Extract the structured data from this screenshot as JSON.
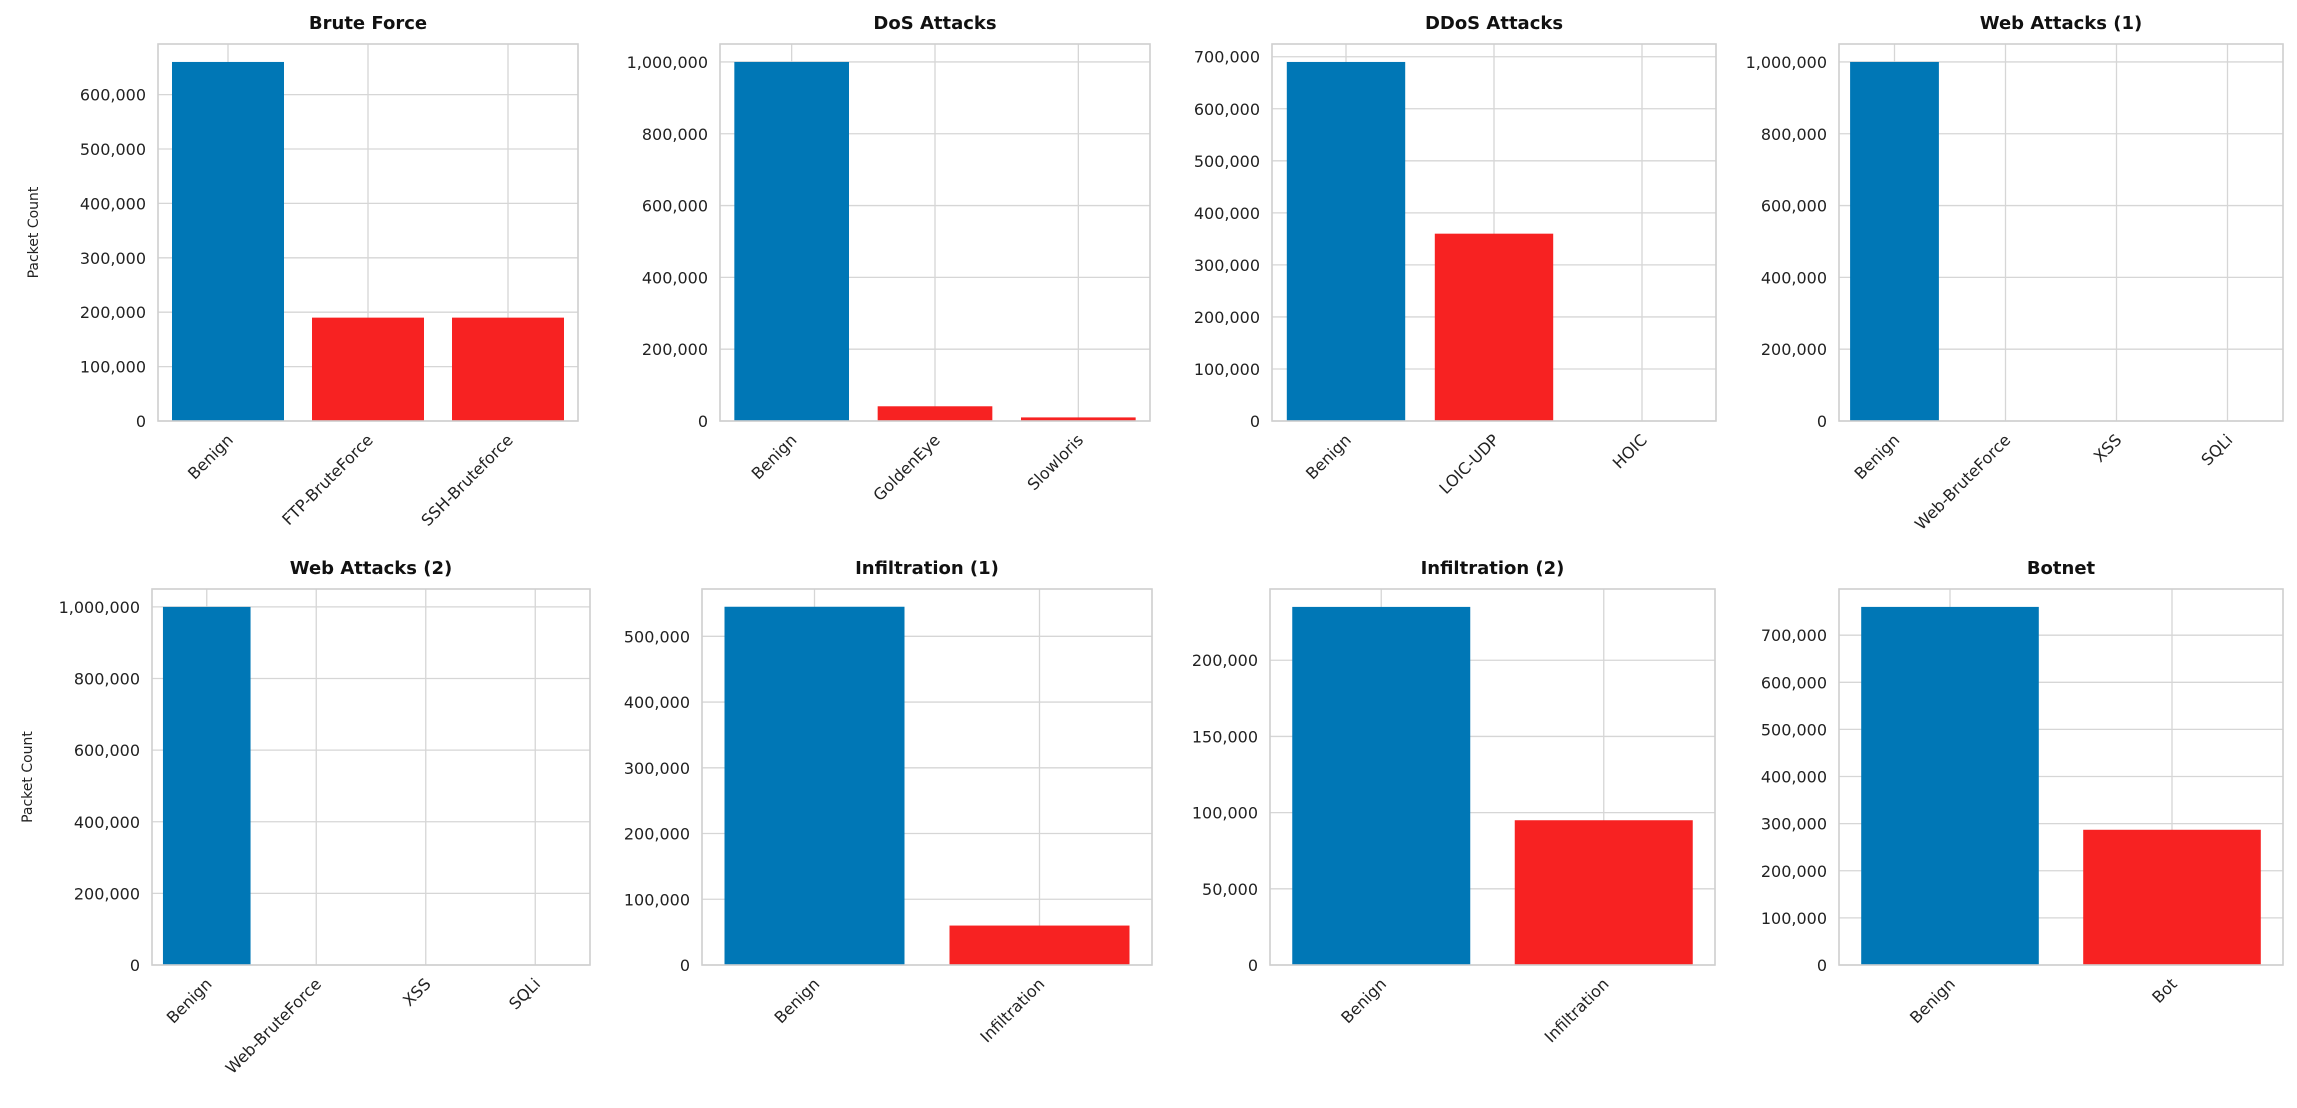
{
  "colors": {
    "benign": "#0077b6",
    "attack": "#f72222",
    "grid": "#d6d6d6",
    "frame": "#cfcfcf"
  },
  "chart_data": [
    {
      "type": "bar",
      "title": "Brute Force",
      "ylabel": "Packet Count",
      "categories": [
        "Benign",
        "FTP-BruteForce",
        "SSH-Bruteforce"
      ],
      "values": [
        660000,
        190000,
        190000
      ],
      "ylim": [
        0,
        693000
      ],
      "yticks": [
        0,
        100000,
        200000,
        300000,
        400000,
        500000,
        600000
      ],
      "grid": true
    },
    {
      "type": "bar",
      "title": "DoS Attacks",
      "ylabel": "",
      "categories": [
        "Benign",
        "GoldenEye",
        "Slowloris"
      ],
      "values": [
        1000000,
        41000,
        10000
      ],
      "ylim": [
        0,
        1050000
      ],
      "yticks": [
        0,
        200000,
        400000,
        600000,
        800000,
        1000000
      ],
      "grid": true
    },
    {
      "type": "bar",
      "title": "DDoS Attacks",
      "ylabel": "",
      "categories": [
        "Benign",
        "LOIC-UDP",
        "HOIC"
      ],
      "values": [
        690000,
        360000,
        0
      ],
      "ylim": [
        0,
        724500
      ],
      "yticks": [
        0,
        100000,
        200000,
        300000,
        400000,
        500000,
        600000,
        700000
      ],
      "grid": true
    },
    {
      "type": "bar",
      "title": "Web Attacks (1)",
      "ylabel": "",
      "categories": [
        "Benign",
        "Web-BruteForce",
        "XSS",
        "SQLi"
      ],
      "values": [
        1000000,
        500,
        200,
        80
      ],
      "ylim": [
        0,
        1050000
      ],
      "yticks": [
        0,
        200000,
        400000,
        600000,
        800000,
        1000000
      ],
      "grid": true
    },
    {
      "type": "bar",
      "title": "Web Attacks (2)",
      "ylabel": "Packet Count",
      "categories": [
        "Benign",
        "Web-BruteForce",
        "XSS",
        "SQLi"
      ],
      "values": [
        1000000,
        500,
        200,
        80
      ],
      "ylim": [
        0,
        1050000
      ],
      "yticks": [
        0,
        200000,
        400000,
        600000,
        800000,
        1000000
      ],
      "grid": true
    },
    {
      "type": "bar",
      "title": "Infiltration (1)",
      "ylabel": "",
      "categories": [
        "Benign",
        "Infiltration"
      ],
      "values": [
        545000,
        60000
      ],
      "ylim": [
        0,
        572000
      ],
      "yticks": [
        0,
        100000,
        200000,
        300000,
        400000,
        500000
      ],
      "grid": true
    },
    {
      "type": "bar",
      "title": "Infiltration (2)",
      "ylabel": "",
      "categories": [
        "Benign",
        "Infiltration"
      ],
      "values": [
        235000,
        95000
      ],
      "ylim": [
        0,
        246750
      ],
      "yticks": [
        0,
        50000,
        100000,
        150000,
        200000
      ],
      "grid": true
    },
    {
      "type": "bar",
      "title": "Botnet",
      "ylabel": "",
      "categories": [
        "Benign",
        "Bot"
      ],
      "values": [
        760000,
        287000
      ],
      "ylim": [
        0,
        798000
      ],
      "yticks": [
        0,
        100000,
        200000,
        300000,
        400000,
        500000,
        600000,
        700000
      ],
      "grid": true
    }
  ]
}
